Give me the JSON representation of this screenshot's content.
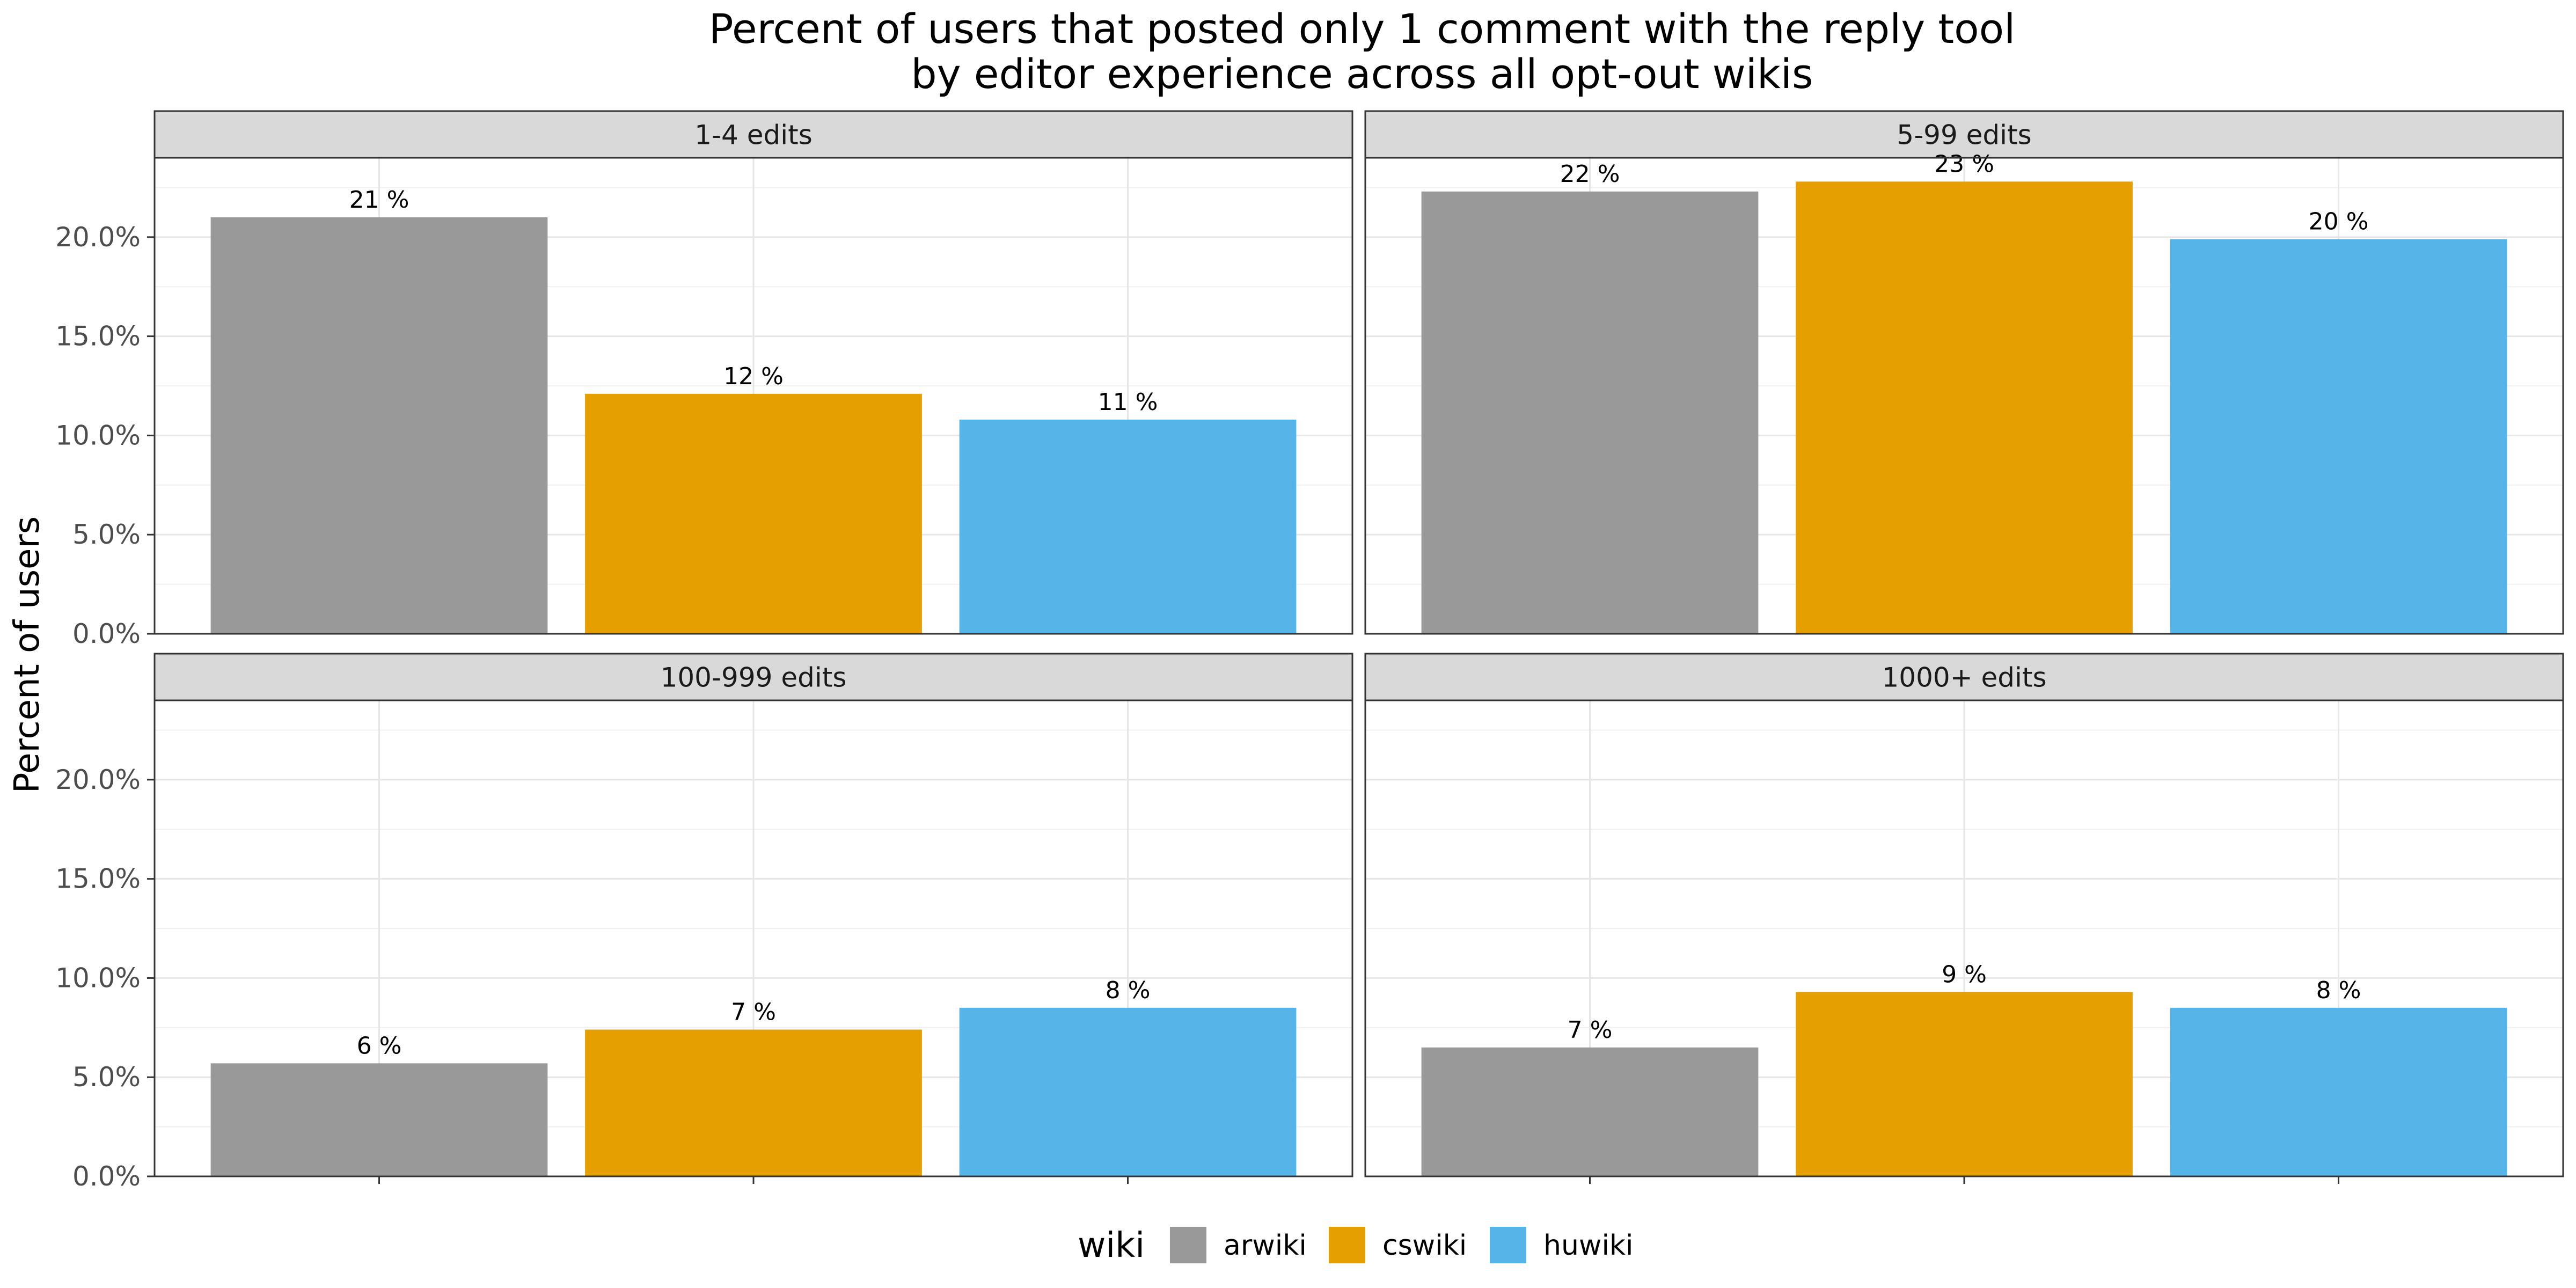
{
  "chart_data": {
    "type": "bar",
    "title": "Percent of users that posted only 1 comment with the reply tool",
    "subtitle": "by editor experience across all opt-out wikis",
    "ylabel": "Percent of users",
    "xlabel": "",
    "ylim": [
      0,
      24
    ],
    "yticks": [
      0,
      5,
      10,
      15,
      20
    ],
    "ytick_labels": [
      "0.0%",
      "5.0%",
      "10.0%",
      "15.0%",
      "20.0%"
    ],
    "grid": true,
    "legend_position": "bottom",
    "legend_title": "wiki",
    "categories": [
      "arwiki",
      "cswiki",
      "huwiki"
    ],
    "colors": [
      "#999999",
      "#E69F00",
      "#56B4E9"
    ],
    "panels": [
      {
        "name": "1-4 edits",
        "values": [
          21.0,
          12.1,
          10.8
        ],
        "labels": [
          "21 %",
          "12 %",
          "11 %"
        ]
      },
      {
        "name": "5-99 edits",
        "values": [
          22.3,
          22.8,
          19.9
        ],
        "labels": [
          "22 %",
          "23 %",
          "20 %"
        ]
      },
      {
        "name": "100-999 edits",
        "values": [
          5.7,
          7.4,
          8.5
        ],
        "labels": [
          "6 %",
          "7 %",
          "8 %"
        ]
      },
      {
        "name": "1000+ edits",
        "values": [
          6.5,
          9.3,
          8.5
        ],
        "labels": [
          "7 %",
          "9 %",
          "8 %"
        ]
      }
    ]
  }
}
